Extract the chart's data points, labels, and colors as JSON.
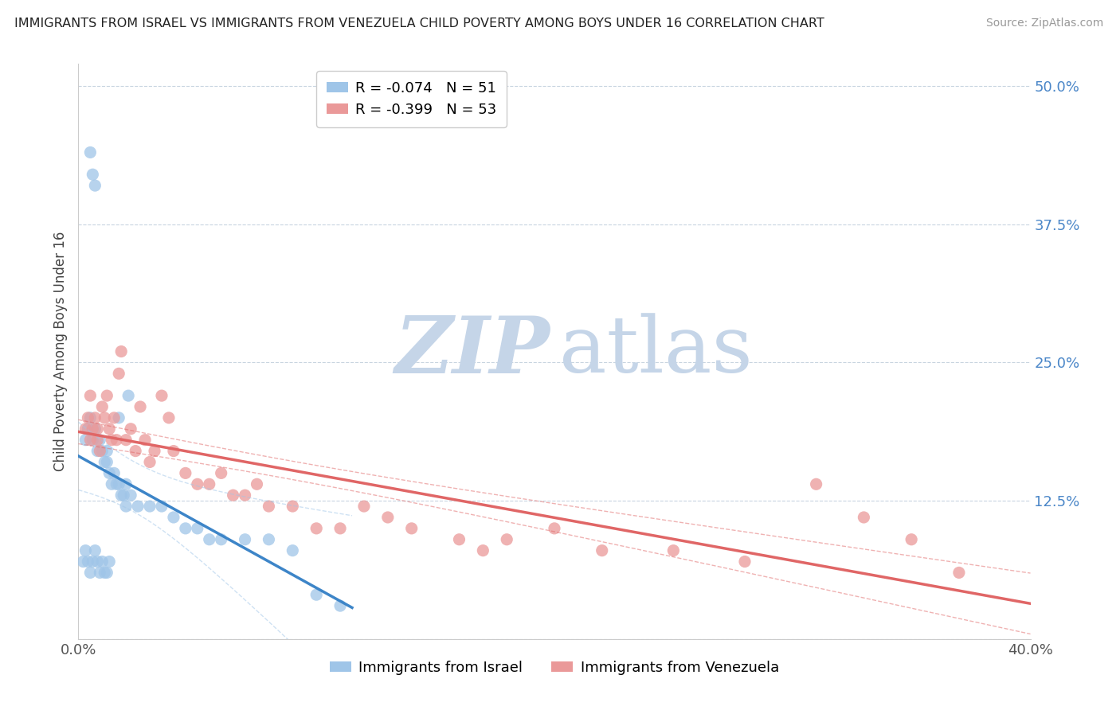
{
  "title": "IMMIGRANTS FROM ISRAEL VS IMMIGRANTS FROM VENEZUELA CHILD POVERTY AMONG BOYS UNDER 16 CORRELATION CHART",
  "source": "Source: ZipAtlas.com",
  "ylabel": "Child Poverty Among Boys Under 16",
  "xlim": [
    0.0,
    0.4
  ],
  "ylim": [
    0.0,
    0.52
  ],
  "israel_R": -0.074,
  "israel_N": 51,
  "venezuela_R": -0.399,
  "venezuela_N": 53,
  "israel_color": "#9fc5e8",
  "venezuela_color": "#ea9999",
  "israel_line_color": "#3d85c8",
  "venezuela_line_color": "#e06666",
  "israel_conf_color": "#9fc5e8",
  "venezuela_conf_color": "#e06666",
  "watermark_zip_color": "#c9d9ee",
  "watermark_atlas_color": "#c9d4e8",
  "background_color": "#ffffff",
  "grid_color": "#c8d4e0",
  "ytick_color": "#4a86c8",
  "israel_scatter_x": [
    0.005,
    0.006,
    0.007,
    0.003,
    0.004,
    0.005,
    0.006,
    0.007,
    0.008,
    0.009,
    0.01,
    0.011,
    0.012,
    0.012,
    0.013,
    0.014,
    0.015,
    0.016,
    0.017,
    0.017,
    0.018,
    0.019,
    0.02,
    0.021,
    0.002,
    0.003,
    0.004,
    0.005,
    0.006,
    0.007,
    0.008,
    0.009,
    0.01,
    0.011,
    0.012,
    0.013,
    0.02,
    0.022,
    0.025,
    0.03,
    0.035,
    0.04,
    0.045,
    0.05,
    0.055,
    0.06,
    0.07,
    0.08,
    0.09,
    0.1,
    0.11
  ],
  "israel_scatter_y": [
    0.44,
    0.42,
    0.41,
    0.18,
    0.19,
    0.2,
    0.18,
    0.19,
    0.17,
    0.18,
    0.17,
    0.16,
    0.16,
    0.17,
    0.15,
    0.14,
    0.15,
    0.14,
    0.14,
    0.2,
    0.13,
    0.13,
    0.12,
    0.22,
    0.07,
    0.08,
    0.07,
    0.06,
    0.07,
    0.08,
    0.07,
    0.06,
    0.07,
    0.06,
    0.06,
    0.07,
    0.14,
    0.13,
    0.12,
    0.12,
    0.12,
    0.11,
    0.1,
    0.1,
    0.09,
    0.09,
    0.09,
    0.09,
    0.08,
    0.04,
    0.03
  ],
  "venezuela_scatter_x": [
    0.003,
    0.004,
    0.005,
    0.005,
    0.006,
    0.007,
    0.008,
    0.008,
    0.009,
    0.01,
    0.011,
    0.012,
    0.013,
    0.014,
    0.015,
    0.016,
    0.017,
    0.018,
    0.02,
    0.022,
    0.024,
    0.026,
    0.028,
    0.03,
    0.032,
    0.035,
    0.038,
    0.04,
    0.045,
    0.05,
    0.055,
    0.06,
    0.065,
    0.07,
    0.075,
    0.08,
    0.09,
    0.1,
    0.11,
    0.12,
    0.13,
    0.14,
    0.16,
    0.17,
    0.18,
    0.2,
    0.22,
    0.25,
    0.28,
    0.31,
    0.33,
    0.35,
    0.37
  ],
  "venezuela_scatter_y": [
    0.19,
    0.2,
    0.18,
    0.22,
    0.19,
    0.2,
    0.18,
    0.19,
    0.17,
    0.21,
    0.2,
    0.22,
    0.19,
    0.18,
    0.2,
    0.18,
    0.24,
    0.26,
    0.18,
    0.19,
    0.17,
    0.21,
    0.18,
    0.16,
    0.17,
    0.22,
    0.2,
    0.17,
    0.15,
    0.14,
    0.14,
    0.15,
    0.13,
    0.13,
    0.14,
    0.12,
    0.12,
    0.1,
    0.1,
    0.12,
    0.11,
    0.1,
    0.09,
    0.08,
    0.09,
    0.1,
    0.08,
    0.08,
    0.07,
    0.14,
    0.11,
    0.09,
    0.06
  ]
}
